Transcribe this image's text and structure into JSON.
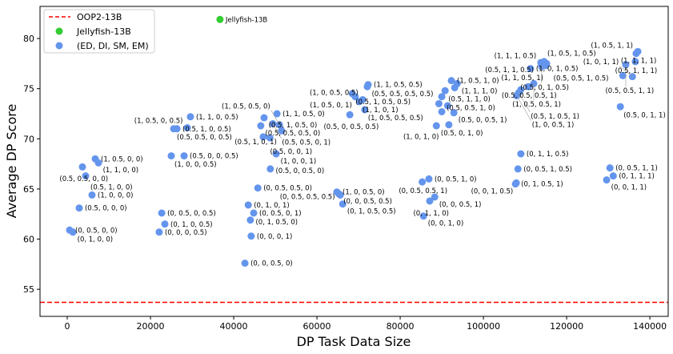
{
  "chart_data": {
    "type": "scatter",
    "xlabel": "DP Task Data Size",
    "ylabel": "Average DP Score",
    "xlim": [
      -6540,
      144400
    ],
    "ylim": [
      52.3,
      83.2
    ],
    "xticks": [
      0,
      20000,
      40000,
      60000,
      80000,
      100000,
      120000,
      140000
    ],
    "yticks": [
      55,
      60,
      65,
      70,
      75,
      80
    ],
    "legend": {
      "placement": "top-left",
      "entries": [
        "OOP2-13B",
        "Jellyfish-13B",
        "(ED, DI, SM, EM)"
      ]
    },
    "colors": {
      "baseline": "#ff0000",
      "jellyfish": "#33cc33",
      "points": "#6495ed"
    },
    "baseline": {
      "name": "OOP2-13B",
      "y": 53.7
    },
    "jellyfish": {
      "name": "Jellyfish-13B",
      "x": 36700,
      "y": 81.9,
      "label": "Jellyfish-13B"
    },
    "points": [
      {
        "x": 6730,
        "y": 68.0,
        "label": "(1, 0.5, 0, 0)"
      },
      {
        "x": 7500,
        "y": 67.6,
        "label": "(1, 1, 0, 0)"
      },
      {
        "x": 3650,
        "y": 67.2,
        "label": "(0.5, 0.5, 0, 0)"
      },
      {
        "x": 4420,
        "y": 66.3,
        "label": "(0.5, 1, 0, 0)"
      },
      {
        "x": 5960,
        "y": 64.4,
        "label": "(1, 0, 0, 0)"
      },
      {
        "x": 2880,
        "y": 63.1,
        "label": "(0.5, 0, 0, 0)"
      },
      {
        "x": 580,
        "y": 60.9,
        "label": "(0, 0.5, 0, 0)"
      },
      {
        "x": 1350,
        "y": 60.7,
        "label": "(0, 1, 0, 0)"
      },
      {
        "x": 22700,
        "y": 62.6,
        "label": "(0, 0.5, 0, 0.5)"
      },
      {
        "x": 23460,
        "y": 61.5,
        "label": "(0, 1, 0, 0.5)"
      },
      {
        "x": 22100,
        "y": 60.7,
        "label": "(0, 0, 0, 0.5)"
      },
      {
        "x": 28080,
        "y": 68.3,
        "label": "(0.5, 0, 0, 0.5)"
      },
      {
        "x": 25000,
        "y": 68.3,
        "label": "(1, 0, 0, 0.5)"
      },
      {
        "x": 29600,
        "y": 72.2,
        "label": "(1, 1, 0, 0.5)"
      },
      {
        "x": 26350,
        "y": 71.0,
        "label": "(0.5, 1, 0, 0.5)"
      },
      {
        "x": 25580,
        "y": 71.0,
        "label": "(0.5, 0.5, 0, 0.5)"
      },
      {
        "x": 28850,
        "y": 71.1,
        "label": "(1, 0.5, 0, 0.5)"
      },
      {
        "x": 50400,
        "y": 72.5,
        "label": "(1, 1, 0.5, 0)"
      },
      {
        "x": 47300,
        "y": 72.1,
        "label": "(0.5, 1, 0.5, 0)"
      },
      {
        "x": 46500,
        "y": 71.3,
        "label": "(0.5, 0.5, 0.5, 0)"
      },
      {
        "x": 49400,
        "y": 71.5,
        "label": "(0.5, 0.5, 0, 1)"
      },
      {
        "x": 51000,
        "y": 71.4,
        "label": "(1, 0.5, 0.5, 0)"
      },
      {
        "x": 51500,
        "y": 70.8,
        "label": "(0.5, 1, 0, 1)"
      },
      {
        "x": 47100,
        "y": 70.2,
        "label": "(0.5, 0, 0, 1)"
      },
      {
        "x": 48700,
        "y": 70.1,
        "label": ""
      },
      {
        "x": 50200,
        "y": 68.5,
        "label": "(1, 0, 0, 1)"
      },
      {
        "x": 48800,
        "y": 67.0,
        "label": "(0.5, 0, 0.5, 0)"
      },
      {
        "x": 45800,
        "y": 65.1,
        "label": "(0, 0.5, 0.5, 0)"
      },
      {
        "x": 43500,
        "y": 63.4,
        "label": "(0, 1, 0, 1)"
      },
      {
        "x": 44800,
        "y": 62.6,
        "label": "(0, 0.5, 0, 1)"
      },
      {
        "x": 44000,
        "y": 61.9,
        "label": "(0, 1, 0.5, 0)"
      },
      {
        "x": 44200,
        "y": 60.3,
        "label": "(0, 0, 0, 1)"
      },
      {
        "x": 42700,
        "y": 57.6,
        "label": "(0, 0, 0.5, 0)"
      },
      {
        "x": 64800,
        "y": 64.7,
        "label": "(1, 0, 0.5, 0)"
      },
      {
        "x": 65300,
        "y": 64.5,
        "label": "(0, 0, 0.5, 0.5)"
      },
      {
        "x": 65600,
        "y": 64.4,
        "label": "(0, 0.5, 0.5, 0.5)"
      },
      {
        "x": 66200,
        "y": 63.5,
        "label": "(0, 1, 0.5, 0.5)"
      },
      {
        "x": 72300,
        "y": 75.4,
        "label": "(1, 1, 0.5, 0.5)"
      },
      {
        "x": 72100,
        "y": 75.2,
        "label": "(0.5, 0.5, 0.5, 0.5)"
      },
      {
        "x": 68500,
        "y": 74.5,
        "label": "(0.5, 1, 0.5, 0.5)"
      },
      {
        "x": 69200,
        "y": 74.2,
        "label": "(1, 0.5, 0, 1)"
      },
      {
        "x": 71000,
        "y": 73.9,
        "label": "(1, 0, 0.5, 0.5)"
      },
      {
        "x": 70200,
        "y": 73.7,
        "label": "(1, 1, 0, 1)"
      },
      {
        "x": 71500,
        "y": 72.9,
        "label": "(1, 0.5, 0.5, 0.5)"
      },
      {
        "x": 67900,
        "y": 72.4,
        "label": "(0.5, 0, 0.5, 0.5)"
      },
      {
        "x": 92300,
        "y": 75.8,
        "label": "(1, 0.5, 1, 0)"
      },
      {
        "x": 93700,
        "y": 75.5,
        "label": "(1, 1, 1, 0)"
      },
      {
        "x": 93100,
        "y": 75.1,
        "label": ""
      },
      {
        "x": 90800,
        "y": 74.8,
        "label": "(0.5, 1, 1, 0)"
      },
      {
        "x": 90000,
        "y": 74.2,
        "label": "(0.5, 0.5, 1, 0)"
      },
      {
        "x": 89300,
        "y": 73.5,
        "label": ""
      },
      {
        "x": 91400,
        "y": 73.3,
        "label": ""
      },
      {
        "x": 90000,
        "y": 72.7,
        "label": ""
      },
      {
        "x": 92900,
        "y": 72.6,
        "label": "(0.5, 0, 0.5, 1)"
      },
      {
        "x": 88700,
        "y": 71.3,
        "label": "(0.5, 0, 1, 0)"
      },
      {
        "x": 91700,
        "y": 71.4,
        "label": "(1, 0, 1, 0)"
      },
      {
        "x": 111300,
        "y": 77.0,
        "label": "(1, 0, 1, 0.5)"
      },
      {
        "x": 113800,
        "y": 77.6,
        "label": "(1, 1, 1, 0.5)"
      },
      {
        "x": 114600,
        "y": 77.7,
        "label": "(1, 0.5, 1, 0.5)"
      },
      {
        "x": 115200,
        "y": 77.5,
        "label": "(0.5, 0.5, 1, 0.5)"
      },
      {
        "x": 115000,
        "y": 77.3,
        "label": "(0.5, 1, 1, 0.5)"
      },
      {
        "x": 114000,
        "y": 77.2,
        "label": "(0.5, 0, 1, 0.5)"
      },
      {
        "x": 110800,
        "y": 75.2,
        "label": "(0.5, 0.5, 0.5, 1)"
      },
      {
        "x": 112100,
        "y": 75.5,
        "label": "(1, 0.5, 0.5, 1)"
      },
      {
        "x": 109000,
        "y": 74.9,
        "label": "(1, 1, 0.5, 1)"
      },
      {
        "x": 108500,
        "y": 74.6,
        "label": "(0.5, 1, 0.5, 1)"
      },
      {
        "x": 108000,
        "y": 74.3,
        "label": "(1, 0, 0.5, 1)"
      },
      {
        "x": 137100,
        "y": 78.7,
        "label": "(1, 1, 1, 1)"
      },
      {
        "x": 136700,
        "y": 78.5,
        "label": "(1, 0.5, 1, 1)"
      },
      {
        "x": 136500,
        "y": 77.7,
        "label": "(0.5, 1, 1, 1)"
      },
      {
        "x": 134200,
        "y": 77.4,
        "label": "(0.5, 0.5, 1, 1)"
      },
      {
        "x": 135800,
        "y": 76.2,
        "label": "(1, 0, 1, 1)"
      },
      {
        "x": 133500,
        "y": 76.3,
        "label": ""
      },
      {
        "x": 132900,
        "y": 73.2,
        "label": "(0.5, 0, 1, 1)"
      },
      {
        "x": 109000,
        "y": 68.5,
        "label": "(0, 1, 1, 0.5)"
      },
      {
        "x": 108300,
        "y": 67.0,
        "label": "(0, 0.5, 1, 0.5)"
      },
      {
        "x": 107700,
        "y": 65.5,
        "label": "(0, 1, 0.5, 1)"
      },
      {
        "x": 107900,
        "y": 65.6,
        "label": "(0, 0, 1, 0.5)"
      },
      {
        "x": 86900,
        "y": 66.0,
        "label": "(0, 0.5, 1, 0)"
      },
      {
        "x": 85300,
        "y": 65.7,
        "label": "(0, 0.5, 0.5, 1)"
      },
      {
        "x": 88300,
        "y": 64.2,
        "label": "(0, 0, 0.5, 1)"
      },
      {
        "x": 87100,
        "y": 63.8,
        "label": "(0, 1, 1, 0)"
      },
      {
        "x": 85600,
        "y": 62.3,
        "label": "(0, 0, 1, 0)"
      },
      {
        "x": 130400,
        "y": 67.1,
        "label": "(0, 0.5, 1, 1)"
      },
      {
        "x": 131200,
        "y": 66.3,
        "label": "(0, 1, 1, 1)"
      },
      {
        "x": 129600,
        "y": 65.9,
        "label": "(0, 0, 1, 1)"
      }
    ]
  }
}
